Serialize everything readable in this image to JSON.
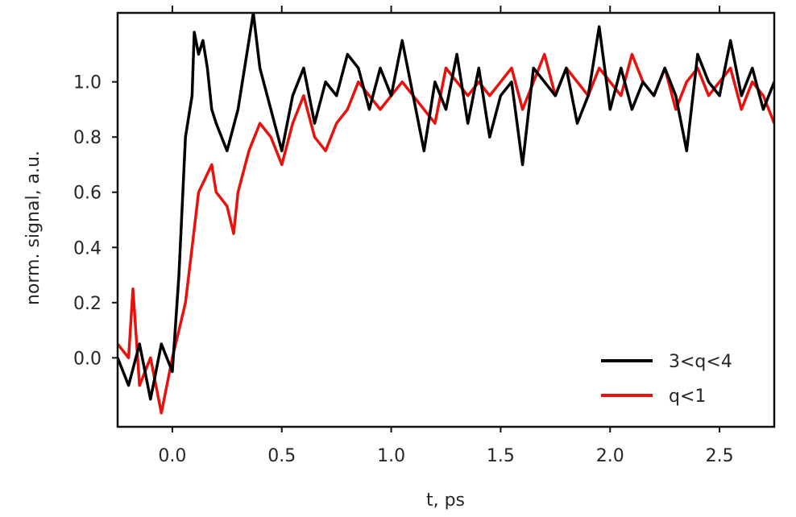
{
  "chart_data": {
    "type": "line",
    "title": "",
    "xlabel": "t, ps",
    "ylabel": "norm. signal, a.u.",
    "xlim": [
      -0.25,
      2.75
    ],
    "ylim": [
      -0.25,
      1.25
    ],
    "xticks": [
      0.0,
      0.5,
      1.0,
      1.5,
      2.0,
      2.5
    ],
    "xtick_labels": [
      "0.0",
      "0.5",
      "1.0",
      "1.5",
      "2.0",
      "2.5"
    ],
    "yticks": [
      0.0,
      0.2,
      0.4,
      0.6,
      0.8,
      1.0
    ],
    "ytick_labels": [
      "0.0",
      "0.2",
      "0.4",
      "0.6",
      "0.8",
      "1.0"
    ],
    "grid": false,
    "legend_position": "lower-right",
    "series": [
      {
        "name": "3<q<4",
        "color": "#000000",
        "x": [
          -0.25,
          -0.2,
          -0.15,
          -0.1,
          -0.05,
          0.0,
          0.03,
          0.06,
          0.09,
          0.1,
          0.12,
          0.14,
          0.16,
          0.18,
          0.2,
          0.25,
          0.3,
          0.35,
          0.37,
          0.4,
          0.45,
          0.5,
          0.55,
          0.6,
          0.65,
          0.7,
          0.75,
          0.8,
          0.85,
          0.9,
          0.95,
          1.0,
          1.05,
          1.1,
          1.15,
          1.2,
          1.25,
          1.3,
          1.35,
          1.4,
          1.45,
          1.5,
          1.55,
          1.6,
          1.65,
          1.7,
          1.75,
          1.8,
          1.85,
          1.9,
          1.95,
          2.0,
          2.05,
          2.1,
          2.15,
          2.2,
          2.25,
          2.3,
          2.35,
          2.4,
          2.45,
          2.5,
          2.55,
          2.6,
          2.65,
          2.7,
          2.75
        ],
        "values": [
          0.0,
          -0.1,
          0.05,
          -0.15,
          0.05,
          -0.05,
          0.3,
          0.8,
          0.95,
          1.18,
          1.1,
          1.15,
          1.05,
          0.9,
          0.85,
          0.75,
          0.9,
          1.15,
          1.25,
          1.05,
          0.9,
          0.75,
          0.95,
          1.05,
          0.85,
          1.0,
          0.95,
          1.1,
          1.05,
          0.9,
          1.05,
          0.95,
          1.15,
          0.95,
          0.75,
          1.0,
          0.9,
          1.1,
          0.85,
          1.05,
          0.8,
          0.95,
          1.0,
          0.7,
          1.05,
          1.0,
          0.95,
          1.05,
          0.85,
          0.95,
          1.2,
          0.9,
          1.05,
          0.9,
          1.0,
          0.95,
          1.05,
          0.95,
          0.75,
          1.1,
          1.0,
          0.95,
          1.15,
          0.95,
          1.05,
          0.9,
          1.0
        ]
      },
      {
        "name": "q<1",
        "color": "#e8110c",
        "x": [
          -0.25,
          -0.2,
          -0.18,
          -0.15,
          -0.1,
          -0.05,
          0.0,
          0.03,
          0.06,
          0.09,
          0.12,
          0.15,
          0.18,
          0.2,
          0.25,
          0.28,
          0.3,
          0.35,
          0.4,
          0.45,
          0.5,
          0.55,
          0.6,
          0.65,
          0.7,
          0.75,
          0.8,
          0.85,
          0.9,
          0.95,
          1.0,
          1.05,
          1.1,
          1.15,
          1.2,
          1.25,
          1.3,
          1.35,
          1.4,
          1.45,
          1.5,
          1.55,
          1.6,
          1.65,
          1.7,
          1.75,
          1.8,
          1.85,
          1.9,
          1.95,
          2.0,
          2.05,
          2.1,
          2.15,
          2.2,
          2.25,
          2.3,
          2.35,
          2.4,
          2.45,
          2.5,
          2.55,
          2.6,
          2.65,
          2.7,
          2.75
        ],
        "values": [
          0.05,
          0.0,
          0.25,
          -0.1,
          0.0,
          -0.2,
          0.0,
          0.1,
          0.2,
          0.4,
          0.6,
          0.65,
          0.7,
          0.6,
          0.55,
          0.45,
          0.6,
          0.75,
          0.85,
          0.8,
          0.7,
          0.85,
          0.95,
          0.8,
          0.75,
          0.85,
          0.9,
          1.0,
          0.95,
          0.9,
          0.95,
          1.0,
          0.95,
          0.9,
          0.85,
          1.05,
          1.0,
          0.95,
          1.0,
          0.95,
          1.0,
          1.05,
          0.9,
          1.0,
          1.1,
          0.95,
          1.05,
          1.0,
          0.95,
          1.05,
          1.0,
          0.95,
          1.1,
          1.0,
          0.95,
          1.05,
          0.9,
          1.0,
          1.05,
          0.95,
          1.0,
          1.05,
          0.9,
          1.0,
          0.95,
          0.85
        ]
      }
    ]
  }
}
